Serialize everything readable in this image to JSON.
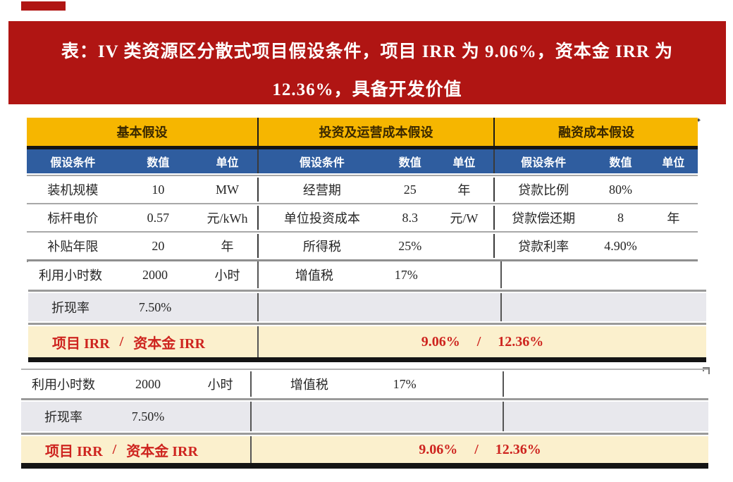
{
  "banner": {
    "line1": "表：IV 类资源区分散式项目假设条件，项目 IRR 为 9.06%，资本金 IRR 为",
    "line2": "12.36%，具备开发价值",
    "bg_color": "#b01513",
    "text_color": "#ffffff"
  },
  "table": {
    "colors": {
      "group_header_bg": "#f6b600",
      "subheader_bg": "#2f5d9f",
      "discount_row_bg": "#e8e8ed",
      "irr_row_bg": "#fbf0cd",
      "irr_text": "#ce241f"
    },
    "group_headers": [
      "基本假设",
      "投资及运营成本假设",
      "融资成本假设"
    ],
    "subheader": [
      "假设条件",
      "数值",
      "单位"
    ],
    "rows": [
      [
        {
          "label": "装机规模",
          "value": "10",
          "unit": "MW"
        },
        {
          "label": "经营期",
          "value": "25",
          "unit": "年"
        },
        {
          "label": "贷款比例",
          "value": "80%",
          "unit": ""
        }
      ],
      [
        {
          "label": "标杆电价",
          "value": "0.57",
          "unit": "元/kWh"
        },
        {
          "label": "单位投资成本",
          "value": "8.3",
          "unit": "元/W"
        },
        {
          "label": "贷款偿还期",
          "value": "8",
          "unit": "年"
        }
      ],
      [
        {
          "label": "补贴年限",
          "value": "20",
          "unit": "年"
        },
        {
          "label": "所得税",
          "value": "25%",
          "unit": ""
        },
        {
          "label": "贷款利率",
          "value": "4.90%",
          "unit": ""
        }
      ]
    ],
    "hours_row": {
      "label": "利用小时数",
      "value": "2000",
      "unit": "小时",
      "vat_label": "增值税",
      "vat_value": "17%"
    },
    "discount_row": {
      "label": "折现率",
      "value": "7.50%"
    },
    "irr_row": {
      "label_project": "项目 IRR",
      "label_separator": "/",
      "label_equity": "资本金 IRR",
      "value_project": "9.06%",
      "value_separator": "/",
      "value_equity": "12.36%"
    }
  },
  "decorations": {
    "cursor_artifact": "✦"
  }
}
